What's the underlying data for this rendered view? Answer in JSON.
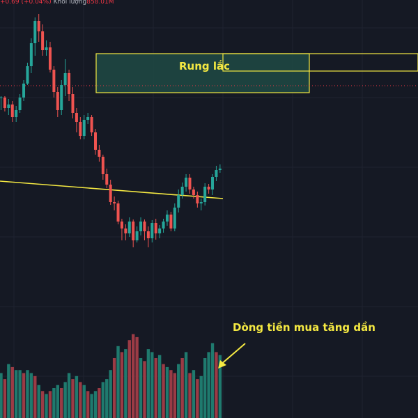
{
  "header": {
    "change": "+0.69 (+0.04%)",
    "volume_label": "Khối lượng",
    "volume_value": "858.01M"
  },
  "annotations": {
    "range_label": "Rung lắc",
    "flow_label": "Dòng tiền mua tăng dần"
  },
  "colors": {
    "background": "#151924",
    "up": "#26a69a",
    "down": "#ef5350",
    "up_volume": "#1f7a6e",
    "down_volume": "#9b3b45",
    "annotation": "#f5e942",
    "zone_fill": "#1f4a44",
    "price_line": "#f23645",
    "grid": "#1f2330"
  },
  "chart_data": {
    "type": "candlestick",
    "grid": true,
    "candles": [
      [
        300,
        300,
        282,
        302
      ],
      [
        300,
        285,
        280,
        302
      ],
      [
        285,
        290,
        275,
        298
      ],
      [
        290,
        272,
        265,
        295
      ],
      [
        272,
        282,
        265,
        288
      ],
      [
        282,
        300,
        278,
        305
      ],
      [
        300,
        320,
        295,
        325
      ],
      [
        320,
        345,
        318,
        350
      ],
      [
        345,
        378,
        335,
        385
      ],
      [
        378,
        410,
        360,
        415
      ],
      [
        410,
        395,
        380,
        420
      ],
      [
        395,
        368,
        360,
        405
      ],
      [
        368,
        372,
        360,
        382
      ],
      [
        372,
        340,
        336,
        380
      ],
      [
        340,
        308,
        300,
        345
      ],
      [
        308,
        282,
        272,
        315
      ],
      [
        282,
        318,
        275,
        325
      ],
      [
        318,
        335,
        302,
        355
      ],
      [
        335,
        305,
        295,
        340
      ],
      [
        305,
        278,
        270,
        315
      ],
      [
        278,
        265,
        250,
        285
      ],
      [
        265,
        245,
        240,
        272
      ],
      [
        245,
        268,
        240,
        275
      ],
      [
        268,
        272,
        262,
        278
      ],
      [
        272,
        250,
        245,
        275
      ],
      [
        250,
        225,
        218,
        255
      ],
      [
        225,
        215,
        208,
        232
      ],
      [
        215,
        190,
        182,
        218
      ],
      [
        190,
        175,
        170,
        198
      ],
      [
        175,
        150,
        146,
        182
      ],
      [
        150,
        148,
        138,
        158
      ],
      [
        148,
        122,
        118,
        152
      ],
      [
        122,
        112,
        95,
        126
      ],
      [
        112,
        105,
        95,
        118
      ],
      [
        105,
        122,
        100,
        128
      ],
      [
        122,
        95,
        85,
        125
      ],
      [
        95,
        108,
        92,
        115
      ],
      [
        108,
        122,
        102,
        128
      ],
      [
        122,
        108,
        95,
        125
      ],
      [
        108,
        98,
        85,
        115
      ],
      [
        98,
        120,
        92,
        124
      ],
      [
        120,
        105,
        96,
        126
      ],
      [
        105,
        112,
        98,
        117
      ],
      [
        112,
        122,
        106,
        126
      ],
      [
        122,
        132,
        116,
        138
      ],
      [
        132,
        112,
        108,
        136
      ],
      [
        112,
        142,
        108,
        148
      ],
      [
        142,
        160,
        135,
        168
      ],
      [
        160,
        172,
        155,
        178
      ],
      [
        172,
        185,
        165,
        190
      ],
      [
        185,
        168,
        162,
        190
      ],
      [
        168,
        160,
        155,
        172
      ],
      [
        160,
        148,
        142,
        165
      ],
      [
        148,
        150,
        138,
        155
      ],
      [
        150,
        172,
        145,
        177
      ],
      [
        172,
        168,
        162,
        176
      ],
      [
        168,
        186,
        160,
        190
      ],
      [
        186,
        196,
        180,
        202
      ],
      [
        196,
        198,
        192,
        204
      ]
    ],
    "volume": [
      [
        15,
        "up"
      ],
      [
        13,
        "down"
      ],
      [
        18,
        "up"
      ],
      [
        17,
        "down"
      ],
      [
        16,
        "up"
      ],
      [
        16,
        "up"
      ],
      [
        15,
        "down"
      ],
      [
        16,
        "up"
      ],
      [
        15,
        "up"
      ],
      [
        14,
        "down"
      ],
      [
        11,
        "up"
      ],
      [
        9,
        "down"
      ],
      [
        8,
        "up"
      ],
      [
        9,
        "down"
      ],
      [
        10,
        "up"
      ],
      [
        11,
        "up"
      ],
      [
        10,
        "down"
      ],
      [
        12,
        "up"
      ],
      [
        15,
        "up"
      ],
      [
        13,
        "down"
      ],
      [
        14,
        "up"
      ],
      [
        12,
        "down"
      ],
      [
        11,
        "up"
      ],
      [
        9,
        "down"
      ],
      [
        8,
        "up"
      ],
      [
        9,
        "up"
      ],
      [
        10,
        "down"
      ],
      [
        12,
        "up"
      ],
      [
        13,
        "up"
      ],
      [
        16,
        "up"
      ],
      [
        20,
        "down"
      ],
      [
        24,
        "up"
      ],
      [
        22,
        "down"
      ],
      [
        23,
        "up"
      ],
      [
        26,
        "down"
      ],
      [
        28,
        "down"
      ],
      [
        27,
        "down"
      ],
      [
        20,
        "up"
      ],
      [
        19,
        "down"
      ],
      [
        23,
        "up"
      ],
      [
        22,
        "up"
      ],
      [
        20,
        "down"
      ],
      [
        21,
        "up"
      ],
      [
        18,
        "down"
      ],
      [
        17,
        "up"
      ],
      [
        16,
        "down"
      ],
      [
        15,
        "down"
      ],
      [
        18,
        "up"
      ],
      [
        20,
        "down"
      ],
      [
        22,
        "up"
      ],
      [
        15,
        "down"
      ],
      [
        16,
        "up"
      ],
      [
        13,
        "down"
      ],
      [
        14,
        "up"
      ],
      [
        20,
        "up"
      ],
      [
        22,
        "up"
      ],
      [
        25,
        "up"
      ],
      [
        22,
        "down"
      ],
      [
        21,
        "up"
      ]
    ]
  }
}
